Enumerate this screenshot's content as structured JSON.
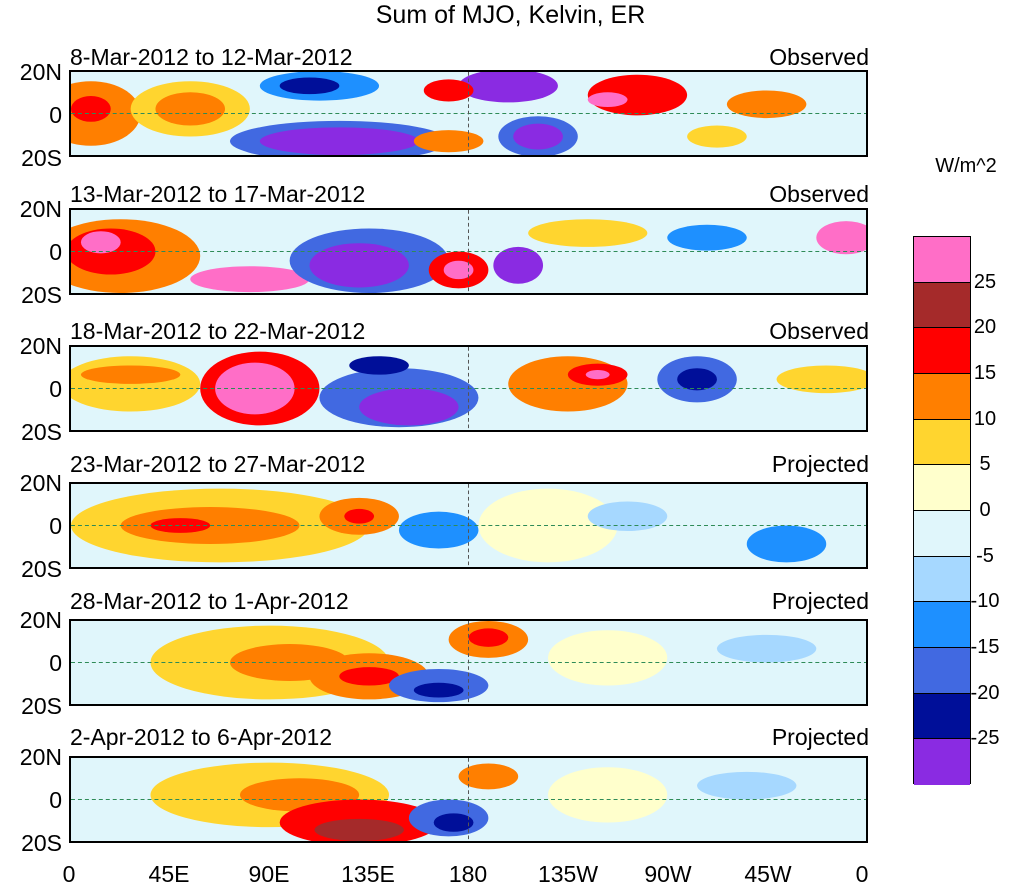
{
  "title": "Sum of MJO, Kelvin, ER",
  "panels": [
    {
      "period": "8-Mar-2012 to 12-Mar-2012",
      "status": "Observed"
    },
    {
      "period": "13-Mar-2012 to 17-Mar-2012",
      "status": "Observed"
    },
    {
      "period": "18-Mar-2012 to 22-Mar-2012",
      "status": "Observed"
    },
    {
      "period": "23-Mar-2012 to 27-Mar-2012",
      "status": "Projected"
    },
    {
      "period": "28-Mar-2012 to 1-Apr-2012",
      "status": "Projected"
    },
    {
      "period": "2-Apr-2012 to 6-Apr-2012",
      "status": "Projected"
    }
  ],
  "lat_labels": [
    "20N",
    "0",
    "20S"
  ],
  "lon_labels": [
    "0",
    "45E",
    "90E",
    "135E",
    "180",
    "135W",
    "90W",
    "45W",
    "0"
  ],
  "colorbar": {
    "units": "W/m^2",
    "labels": [
      "25",
      "20",
      "15",
      "10",
      "5",
      "0",
      "-5",
      "-10",
      "-15",
      "-20",
      "-25"
    ],
    "colors": [
      "#ff6ec7",
      "#a52a2a",
      "#ff0000",
      "#ff7f00",
      "#ffd52f",
      "#ffffcc",
      "#e0f6fb",
      "#a6d8ff",
      "#1e90ff",
      "#4169e1",
      "#000f99",
      "#8a2be2"
    ]
  }
}
